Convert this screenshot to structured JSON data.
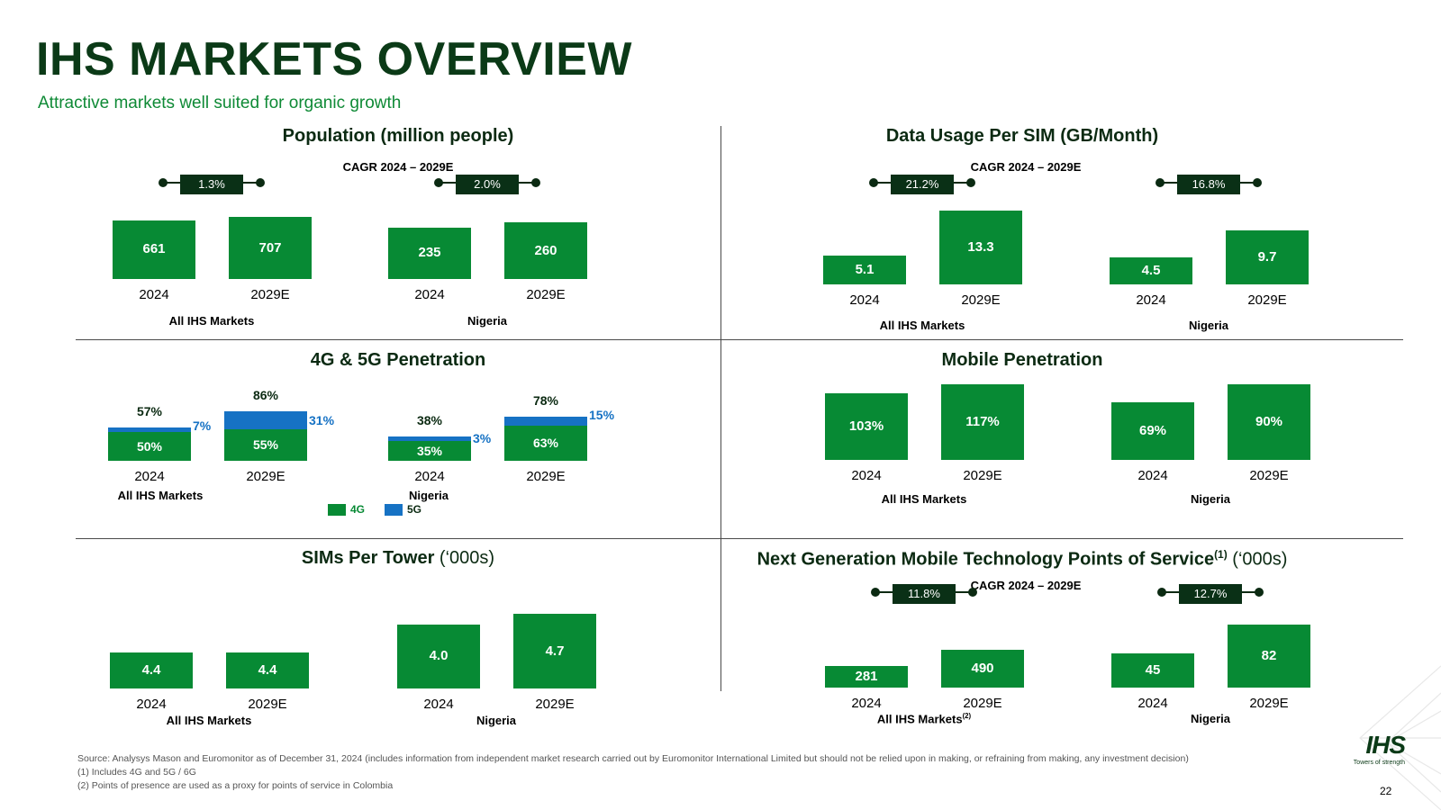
{
  "header": {
    "title": "IHS MARKETS OVERVIEW",
    "subtitle": "Attractive markets well suited for organic growth"
  },
  "panels": {
    "population": {
      "title": "Population (million people)",
      "cagr_heading": "CAGR 2024 – 2029E",
      "groups": [
        {
          "label": "All IHS Markets",
          "cagr": "1.3%",
          "bars": [
            {
              "year": "2024",
              "value": 661,
              "label": "661"
            },
            {
              "year": "2029E",
              "value": 707,
              "label": "707"
            }
          ]
        },
        {
          "label": "Nigeria",
          "cagr": "2.0%",
          "bars": [
            {
              "year": "2024",
              "value": 235,
              "label": "235"
            },
            {
              "year": "2029E",
              "value": 260,
              "label": "260"
            }
          ]
        }
      ]
    },
    "data_usage": {
      "title": "Data Usage Per SIM (GB/Month)",
      "cagr_heading": "CAGR 2024 – 2029E",
      "groups": [
        {
          "label": "All IHS Markets",
          "cagr": "21.2%",
          "bars": [
            {
              "year": "2024",
              "value": 5.1,
              "label": "5.1"
            },
            {
              "year": "2029E",
              "value": 13.3,
              "label": "13.3"
            }
          ]
        },
        {
          "label": "Nigeria",
          "cagr": "16.8%",
          "bars": [
            {
              "year": "2024",
              "value": 4.5,
              "label": "4.5"
            },
            {
              "year": "2029E",
              "value": 9.7,
              "label": "9.7"
            }
          ]
        }
      ]
    },
    "penetration_4g5g": {
      "title": "4G & 5G Penetration",
      "legend": {
        "g4": "4G",
        "g5": "5G"
      },
      "groups": [
        {
          "label": "All IHS Markets",
          "bars": [
            {
              "year": "2024",
              "g4": 50,
              "g5": 7,
              "g4_label": "50%",
              "g5_label": "7%",
              "total_label": "57%"
            },
            {
              "year": "2029E",
              "g4": 55,
              "g5": 31,
              "g4_label": "55%",
              "g5_label": "31%",
              "total_label": "86%"
            }
          ]
        },
        {
          "label": "Nigeria",
          "bars": [
            {
              "year": "2024",
              "g4": 35,
              "g5": 3,
              "g4_label": "35%",
              "g5_label": "3%",
              "total_label": "38%"
            },
            {
              "year": "2029E",
              "g4": 63,
              "g5": 15,
              "g4_label": "63%",
              "g5_label": "15%",
              "total_label": "78%"
            }
          ]
        }
      ]
    },
    "mobile_penetration": {
      "title": "Mobile Penetration",
      "groups": [
        {
          "label": "All IHS Markets",
          "bars": [
            {
              "year": "2024",
              "value": 103,
              "label": "103%"
            },
            {
              "year": "2029E",
              "value": 117,
              "label": "117%"
            }
          ]
        },
        {
          "label": "Nigeria",
          "bars": [
            {
              "year": "2024",
              "value": 69,
              "label": "69%"
            },
            {
              "year": "2029E",
              "value": 90,
              "label": "90%"
            }
          ]
        }
      ]
    },
    "sims_per_tower": {
      "title_bold": "SIMs Per Tower",
      "title_normal": " (‘000s)",
      "groups": [
        {
          "label": "All IHS Markets",
          "bars": [
            {
              "year": "2024",
              "value": 4.4,
              "label": "4.4"
            },
            {
              "year": "2029E",
              "value": 4.4,
              "label": "4.4"
            }
          ]
        },
        {
          "label": "Nigeria",
          "bars": [
            {
              "year": "2024",
              "value": 4.0,
              "label": "4.0"
            },
            {
              "year": "2029E",
              "value": 4.7,
              "label": "4.7"
            }
          ]
        }
      ]
    },
    "next_gen": {
      "title_bold": "Next Generation Mobile Technology Points of Service",
      "title_sup": "(1)",
      "title_normal": " (‘000s)",
      "cagr_heading": "CAGR 2024 – 2029E",
      "groups": [
        {
          "label": "All IHS Markets",
          "label_sup": "(2)",
          "cagr": "11.8%",
          "bars": [
            {
              "year": "2024",
              "value": 281,
              "label": "281"
            },
            {
              "year": "2029E",
              "value": 490,
              "label": "490"
            }
          ]
        },
        {
          "label": "Nigeria",
          "cagr": "12.7%",
          "bars": [
            {
              "year": "2024",
              "value": 45,
              "label": "45"
            },
            {
              "year": "2029E",
              "value": 82,
              "label": "82"
            }
          ]
        }
      ]
    }
  },
  "footnotes": {
    "source": "Source: Analysys Mason and Euromonitor as of December 31, 2024 (includes information from independent market research carried out by Euromonitor International Limited but should not be relied upon in making, or refraining from making, any investment decision)",
    "note1": "(1)    Includes 4G and 5G / 6G",
    "note2": "(2)    Points of presence are used as a proxy for points of service in Colombia"
  },
  "logo": {
    "text": "IHS",
    "tagline": "Towers of strength"
  },
  "page_number": "22",
  "colors": {
    "title_green": "#0b3a17",
    "bar_green": "#078a34",
    "blue_5g": "#1672c4",
    "cagr_box": "#0a3016"
  }
}
